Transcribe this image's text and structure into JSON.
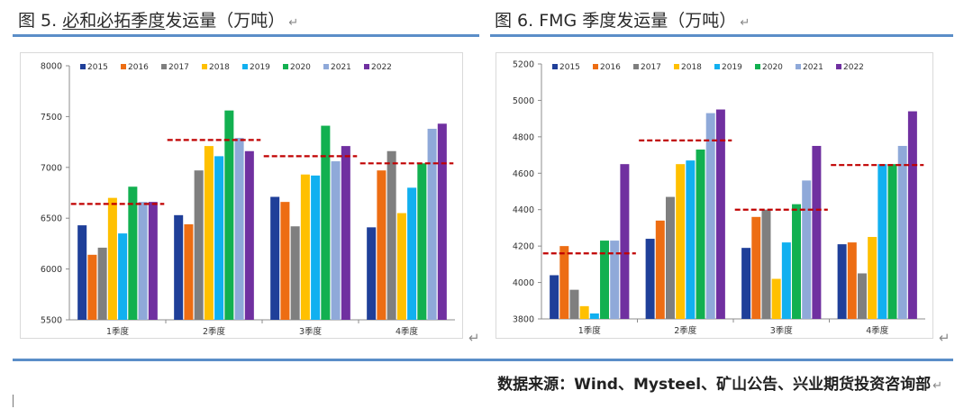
{
  "left_figure": {
    "title_prefix": "图 5. ",
    "title_underlined": "必和必拓季度",
    "title_suffix": "发运量（万吨）"
  },
  "right_figure": {
    "title_prefix": "图 6. ",
    "title_underlined": "",
    "title_suffix": "FMG 季度发运量（万吨）"
  },
  "return_mark": "↵",
  "source_text": "数据来源：Wind、Mysteel、矿山公告、兴业期货投资咨询部",
  "colors": {
    "rule": "#5b8ec8",
    "avg_line": "#c00000",
    "series": [
      "#1f3f99",
      "#ed6d13",
      "#7f7f7f",
      "#ffc000",
      "#11b0f0",
      "#12b050",
      "#8fa9d9",
      "#7030a0"
    ]
  },
  "chart_data": [
    {
      "type": "bar",
      "title": "必和必拓季度发运量（万吨）",
      "categories": [
        "1季度",
        "2季度",
        "3季度",
        "4季度"
      ],
      "ylim": [
        5500,
        8000
      ],
      "yticks": [
        5500,
        6000,
        6500,
        7000,
        7500,
        8000
      ],
      "series": [
        {
          "name": "2015",
          "values": [
            6430,
            6530,
            6710,
            6410
          ]
        },
        {
          "name": "2016",
          "values": [
            6140,
            6440,
            6660,
            6970
          ]
        },
        {
          "name": "2017",
          "values": [
            6210,
            6970,
            6420,
            7160
          ]
        },
        {
          "name": "2018",
          "values": [
            6700,
            7210,
            6930,
            6550
          ]
        },
        {
          "name": "2019",
          "values": [
            6350,
            7110,
            6920,
            6800
          ]
        },
        {
          "name": "2020",
          "values": [
            6810,
            7560,
            7410,
            7040
          ]
        },
        {
          "name": "2021",
          "values": [
            6660,
            7290,
            7060,
            7380
          ]
        },
        {
          "name": "2022",
          "values": [
            6660,
            7160,
            7210,
            7430
          ]
        }
      ],
      "average_lines": [
        6640,
        7270,
        7110,
        7040
      ]
    },
    {
      "type": "bar",
      "title": "FMG 季度发运量（万吨）",
      "categories": [
        "1季度",
        "2季度",
        "3季度",
        "4季度"
      ],
      "ylim": [
        3800,
        5200
      ],
      "yticks": [
        3800,
        4000,
        4200,
        4400,
        4600,
        4800,
        5000,
        5200
      ],
      "series": [
        {
          "name": "2015",
          "values": [
            4040,
            4240,
            4190,
            4210
          ]
        },
        {
          "name": "2016",
          "values": [
            4200,
            4340,
            4360,
            4220
          ]
        },
        {
          "name": "2017",
          "values": [
            3960,
            4470,
            4400,
            4050
          ]
        },
        {
          "name": "2018",
          "values": [
            3870,
            4650,
            4020,
            4250
          ]
        },
        {
          "name": "2019",
          "values": [
            3830,
            4670,
            4220,
            4650
          ]
        },
        {
          "name": "2020",
          "values": [
            4230,
            4730,
            4430,
            4650
          ]
        },
        {
          "name": "2021",
          "values": [
            4230,
            4930,
            4560,
            4750
          ]
        },
        {
          "name": "2022",
          "values": [
            4650,
            4950,
            4750,
            4940
          ]
        }
      ],
      "average_lines": [
        4160,
        4780,
        4400,
        4645
      ]
    }
  ]
}
